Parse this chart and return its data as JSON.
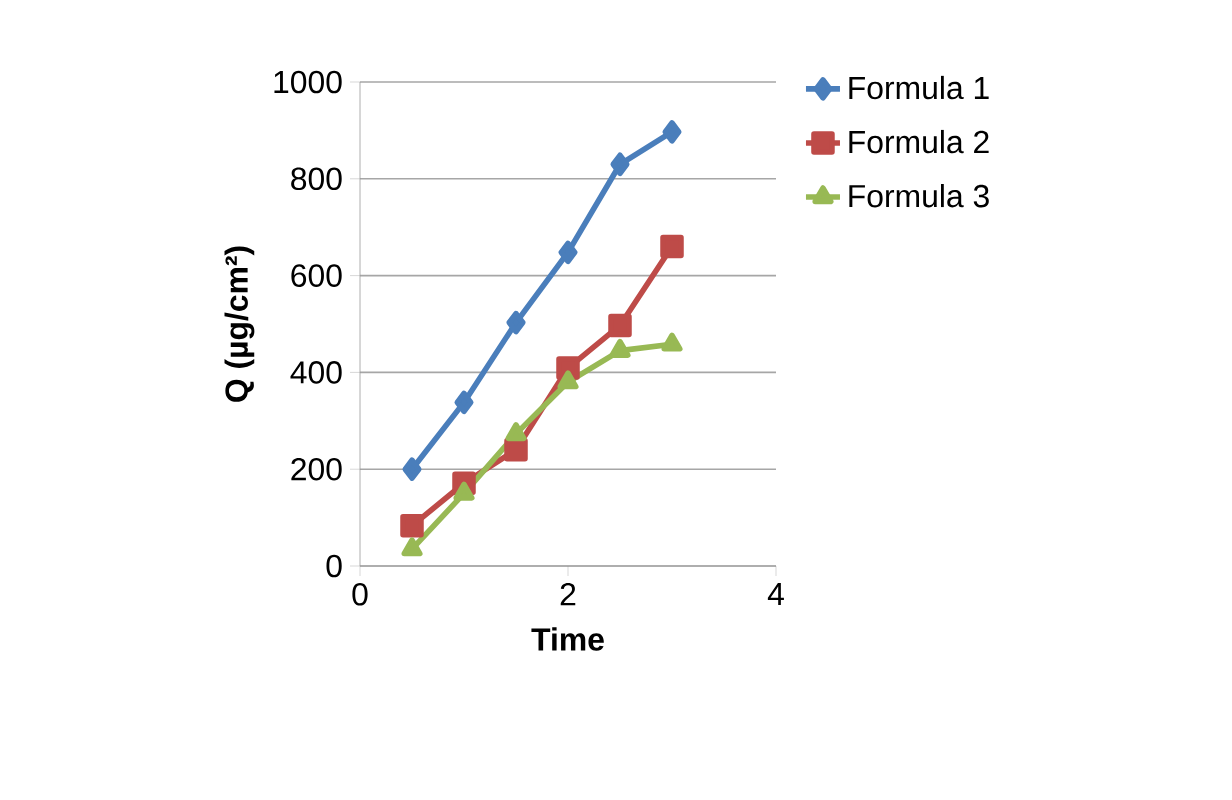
{
  "chart_data": {
    "type": "line",
    "xlabel": "Time",
    "ylabel": "Q (µg/cm²)",
    "x": [
      0.5,
      1,
      1.5,
      2,
      2.5,
      3
    ],
    "series": [
      {
        "name": "Formula 1",
        "color": "#4a7ebb",
        "marker": "diamond",
        "values": [
          200,
          338,
          503,
          648,
          830,
          897
        ]
      },
      {
        "name": "Formula 2",
        "color": "#be4b48",
        "marker": "square",
        "values": [
          83,
          171,
          240,
          409,
          497,
          660
        ]
      },
      {
        "name": "Formula 3",
        "color": "#98b954",
        "marker": "triangle",
        "values": [
          35,
          150,
          273,
          380,
          445,
          458
        ]
      }
    ],
    "xlim": [
      0,
      4
    ],
    "xticks": [
      0,
      2,
      4
    ],
    "ylim": [
      0,
      1000
    ],
    "yticks": [
      0,
      200,
      400,
      600,
      800,
      1000
    ],
    "grid": "y",
    "legend": "right",
    "line_style": "solid"
  }
}
